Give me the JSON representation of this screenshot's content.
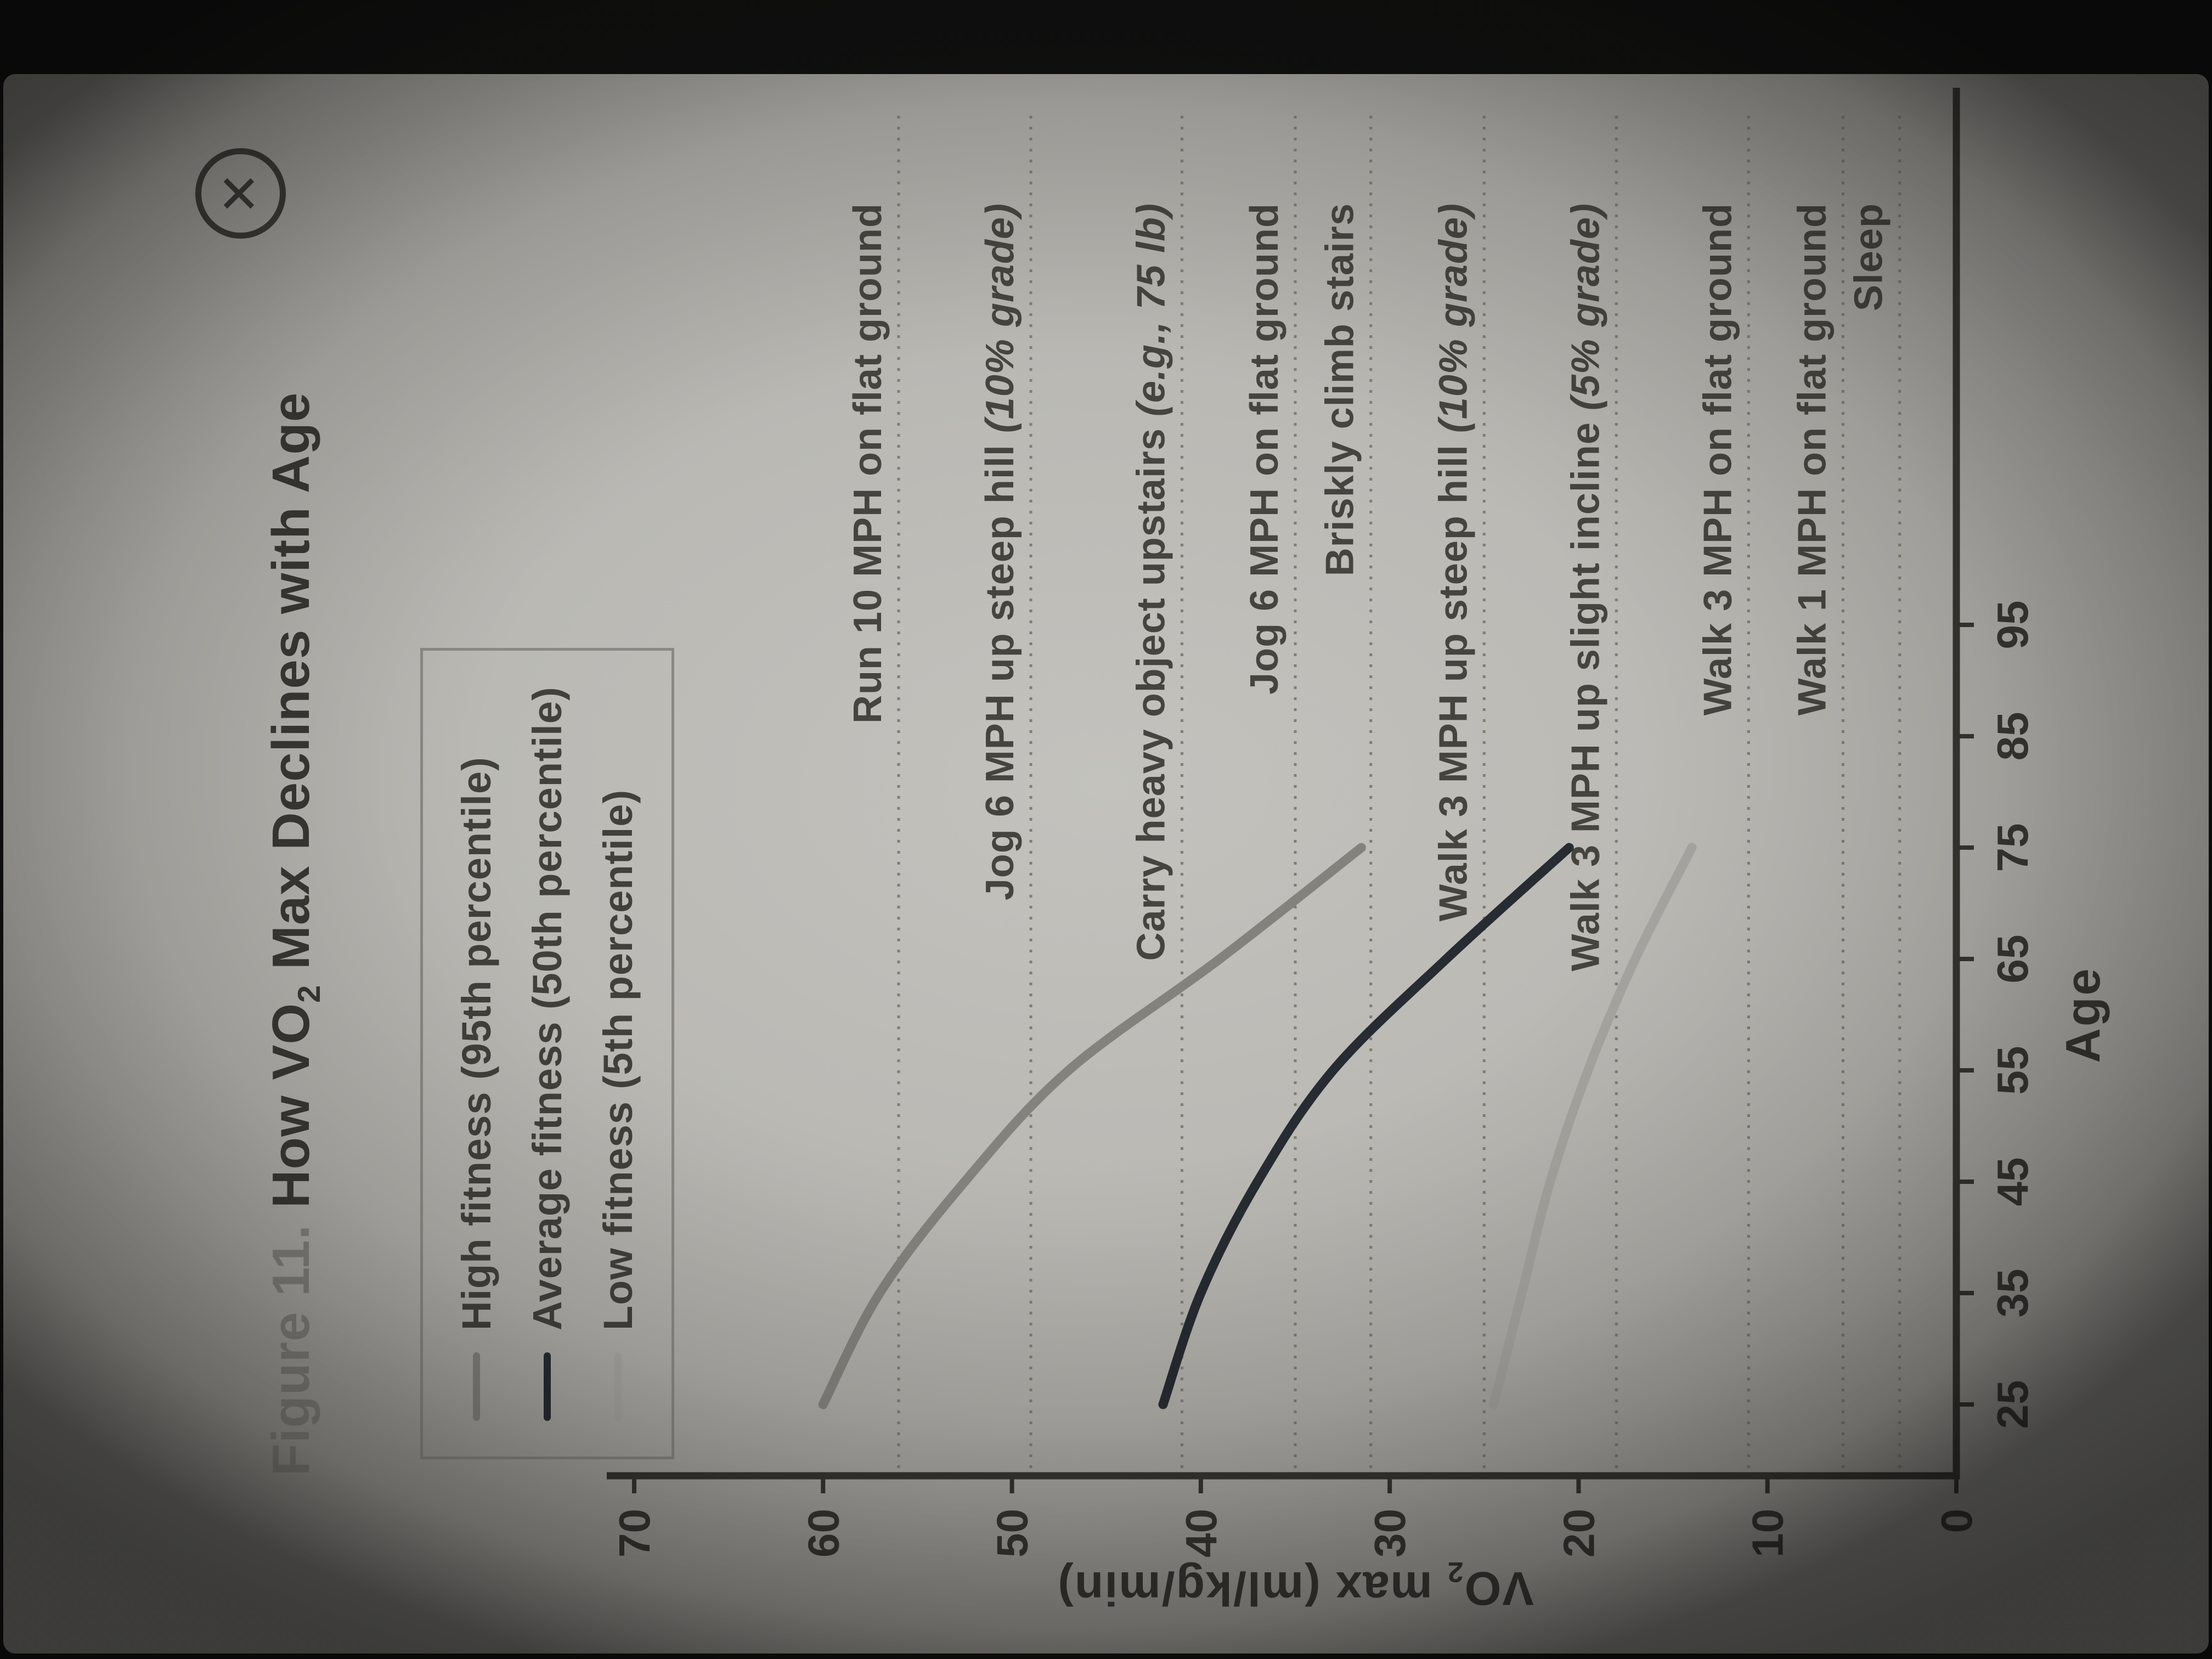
{
  "icons": {
    "close": "✕"
  },
  "figure": {
    "label": "Figure 11.",
    "title_pre": "How VO",
    "title_sub": "2",
    "title_post": " Max Declines with Age"
  },
  "legend": {
    "items": [
      {
        "name": "high-fitness",
        "label": "High fitness (95th percentile)",
        "color": "#8f8e89"
      },
      {
        "name": "average-fitness",
        "label": "Average fitness (50th percentile)",
        "color": "#282d35"
      },
      {
        "name": "low-fitness",
        "label": "Low fitness (5th percentile)",
        "color": "#b6b5b0"
      }
    ]
  },
  "axes": {
    "x_label": "Age",
    "y_label_pre": "VO",
    "y_label_sub": "2",
    "y_label_post": " max (ml/kg/min)",
    "x_ticks": [
      25,
      35,
      45,
      55,
      65,
      75,
      85,
      95
    ],
    "y_ticks": [
      0,
      10,
      20,
      30,
      40,
      50,
      60,
      70
    ]
  },
  "chart_data": {
    "type": "line",
    "title": "Figure 11. How VO2 Max Declines with Age",
    "xlabel": "Age",
    "ylabel": "VO2 max (ml/kg/min)",
    "xlim": [
      20,
      100
    ],
    "ylim": [
      0,
      70
    ],
    "grid": false,
    "legend_position": "top-left box",
    "x": [
      25,
      35,
      45,
      55,
      65,
      75
    ],
    "series": [
      {
        "name": "High fitness (95th percentile)",
        "values": [
          60,
          57,
          52.5,
          47,
          39,
          31.5
        ]
      },
      {
        "name": "Average fitness (50th percentile)",
        "values": [
          42,
          40,
          37,
          33,
          27,
          20.5
        ]
      },
      {
        "name": "Low fitness (5th percentile)",
        "values": [
          24.5,
          23,
          21.5,
          19.5,
          17,
          14
        ]
      }
    ],
    "reference_lines": [
      {
        "label": "Run 10 MPH on flat ground",
        "note": "",
        "value": 56
      },
      {
        "label": "Jog 6 MPH up steep hill ",
        "note": "(10% grade)",
        "value": 49
      },
      {
        "label": "Carry heavy object upstairs ",
        "note": "(e.g., 75 lb)",
        "value": 41
      },
      {
        "label": "Jog 6 MPH on flat ground",
        "note": "",
        "value": 35
      },
      {
        "label": "Briskly climb stairs",
        "note": "",
        "value": 31
      },
      {
        "label": "Walk 3 MPH up steep hill ",
        "note": "(10% grade)",
        "value": 25
      },
      {
        "label": "Walk 3 MPH up slight incline ",
        "note": "(5% grade)",
        "value": 18
      },
      {
        "label": "Walk 3 MPH on flat ground",
        "note": "",
        "value": 11
      },
      {
        "label": "Walk 1 MPH on flat ground",
        "note": "",
        "value": 6
      },
      {
        "label": "Sleep",
        "note": "",
        "value": 3
      }
    ]
  }
}
